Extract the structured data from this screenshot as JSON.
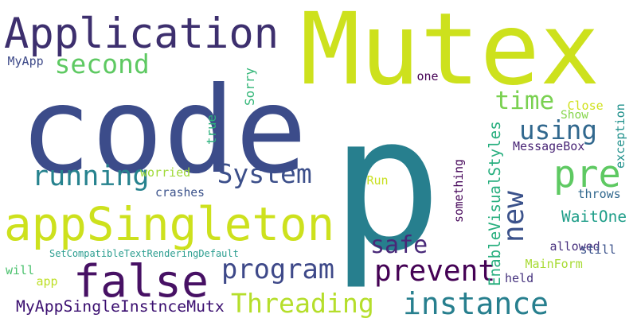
{
  "words": [
    {
      "text": "Mutex",
      "color": "#cde11d",
      "rotate": false
    },
    {
      "text": "code",
      "color": "#3c4c8a",
      "rotate": false
    },
    {
      "text": "p",
      "color": "#277f8e",
      "rotate": false
    },
    {
      "text": "Application",
      "color": "#3d2f6e",
      "rotate": false
    },
    {
      "text": "appSingleton",
      "color": "#cde11d",
      "rotate": false
    },
    {
      "text": "false",
      "color": "#471164",
      "rotate": false
    },
    {
      "text": "instance",
      "color": "#277f8e",
      "rotate": false
    },
    {
      "text": "second",
      "color": "#5ec962",
      "rotate": false
    },
    {
      "text": "time",
      "color": "#7ad151",
      "rotate": false
    },
    {
      "text": "using",
      "color": "#31688e",
      "rotate": false
    },
    {
      "text": "pre",
      "color": "#5ec962",
      "rotate": false
    },
    {
      "text": "running",
      "color": "#26828e",
      "rotate": false
    },
    {
      "text": "System",
      "color": "#3c4f8a",
      "rotate": false
    },
    {
      "text": "new",
      "color": "#3b528b",
      "rotate": true
    },
    {
      "text": "safe",
      "color": "#482878",
      "rotate": false
    },
    {
      "text": "program",
      "color": "#3e4989",
      "rotate": false
    },
    {
      "text": "prevent",
      "color": "#440154",
      "rotate": false
    },
    {
      "text": "Threading",
      "color": "#b5de2b",
      "rotate": false
    },
    {
      "text": "MyAppSingleInstnceMutx",
      "color": "#3b0f70",
      "rotate": false
    },
    {
      "text": "SetCompatibleTextRenderingDefault",
      "color": "#2a9d8f",
      "rotate": false
    },
    {
      "text": "EnableVisualStyles",
      "color": "#29af7f",
      "rotate": true
    },
    {
      "text": "MyApp",
      "color": "#3e4a89",
      "rotate": false
    },
    {
      "text": "Sorry",
      "color": "#35b779",
      "rotate": true
    },
    {
      "text": "one",
      "color": "#440154",
      "rotate": false
    },
    {
      "text": "true",
      "color": "#2db27d",
      "rotate": true
    },
    {
      "text": "Close",
      "color": "#d0e11c",
      "rotate": false
    },
    {
      "text": "Show",
      "color": "#85d54a",
      "rotate": false
    },
    {
      "text": "exception",
      "color": "#21918c",
      "rotate": true
    },
    {
      "text": "MessageBox",
      "color": "#482475",
      "rotate": false
    },
    {
      "text": "worried",
      "color": "#a0da39",
      "rotate": false
    },
    {
      "text": "crashes",
      "color": "#3b528b",
      "rotate": false
    },
    {
      "text": "Run",
      "color": "#c8e020",
      "rotate": false
    },
    {
      "text": "something",
      "color": "#450559",
      "rotate": true
    },
    {
      "text": "throws",
      "color": "#31688e",
      "rotate": false
    },
    {
      "text": "WaitOne",
      "color": "#1f9e89",
      "rotate": false
    },
    {
      "text": "allowed",
      "color": "#472f7d",
      "rotate": false
    },
    {
      "text": "still",
      "color": "#3b528b",
      "rotate": false
    },
    {
      "text": "MainForm",
      "color": "#a8db34",
      "rotate": false
    },
    {
      "text": "held",
      "color": "#46337e",
      "rotate": false
    },
    {
      "text": "will",
      "color": "#4ac16d",
      "rotate": false
    },
    {
      "text": "app",
      "color": "#bddf26",
      "rotate": false
    }
  ]
}
